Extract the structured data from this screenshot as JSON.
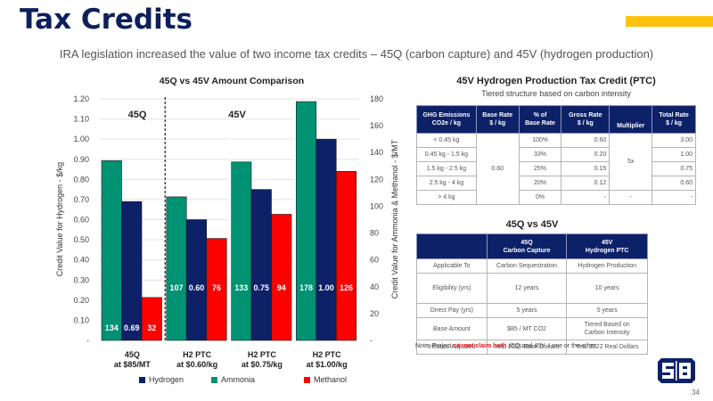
{
  "header": {
    "title": "Tax Credits",
    "subtitle": "IRA legislation increased the value of two income tax credits – 45Q (carbon capture) and 45V (hydrogen production)",
    "accent_color": "#ffc20e",
    "title_color": "#0d1f5c"
  },
  "chart_data": {
    "type": "bar",
    "title": "45Q vs 45V Amount Comparison",
    "categories": [
      "45Q\nat $85/MT",
      "H2 PTC\nat $0.60/kg",
      "H2 PTC\nat $0.75/kg",
      "H2 PTC\nat $1.00/kg"
    ],
    "category_lines": [
      [
        "45Q",
        "at $85/MT"
      ],
      [
        "H2 PTC",
        "at $0.60/kg"
      ],
      [
        "H2 PTC",
        "at $0.75/kg"
      ],
      [
        "H2 PTC",
        "at $1.00/kg"
      ]
    ],
    "series": [
      {
        "name": "Ammonia",
        "axis": "right",
        "color": "#009273",
        "values": [
          134,
          107,
          133,
          178
        ],
        "labels": [
          "134",
          "107",
          "133",
          "178"
        ]
      },
      {
        "name": "Hydrogen",
        "axis": "left",
        "color": "#0d2169",
        "values": [
          0.69,
          0.6,
          0.75,
          1.0
        ],
        "labels": [
          "0.69",
          "0.60",
          "0.75",
          "1.00"
        ]
      },
      {
        "name": "Methanol",
        "axis": "right",
        "color": "#ff0000",
        "values": [
          32,
          76,
          94,
          126
        ],
        "labels": [
          "32",
          "76",
          "94",
          "126"
        ]
      }
    ],
    "legend_order": [
      "Hydrogen",
      "Ammonia",
      "Methanol"
    ],
    "legend_position": "bottom",
    "ylabel": "Credit Value for Hydrogen - $/kg",
    "y2label": "Credit Value for Ammonia & Methanol - $/MT",
    "ylim": [
      0,
      1.2
    ],
    "y2lim": [
      0,
      180
    ],
    "yticks": [
      "-",
      "0.10",
      "0.20",
      "0.30",
      "0.40",
      "0.50",
      "0.60",
      "0.70",
      "0.80",
      "0.90",
      "1.00",
      "1.10",
      "1.20"
    ],
    "y2ticks": [
      "-",
      "20",
      "40",
      "60",
      "80",
      "100",
      "120",
      "140",
      "160",
      "180"
    ],
    "grid": true,
    "annotations": [
      "45Q",
      "45V"
    ],
    "divider": "dashed line between 45Q and 45V groups"
  },
  "ptc_table": {
    "title": "45V Hydrogen Production Tax Credit (PTC)",
    "subtitle": "Tiered structure based on carbon intensity",
    "headers": [
      [
        "GHG Emissions",
        "CO2e / kg"
      ],
      [
        "Base Rate",
        "$ / kg"
      ],
      [
        "% of",
        "Base Rate"
      ],
      [
        "Gross Rate",
        "$ / kg"
      ],
      [
        "",
        "Multiplier"
      ],
      [
        "Total Rate",
        "$ / kg"
      ]
    ],
    "base_rate": "0.60",
    "multiplier": "5x",
    "rows": [
      {
        "ghg": "< 0.45 kg",
        "pct": "100%",
        "gross": "0.60",
        "total": "3.00"
      },
      {
        "ghg": "0.45 kg - 1.5 kg",
        "pct": "33%",
        "gross": "0.20",
        "total": "1.00"
      },
      {
        "ghg": "1.5 kg - 2.5 kg",
        "pct": "25%",
        "gross": "0.15",
        "total": "0.75"
      },
      {
        "ghg": "2.5 kg - 4 kg",
        "pct": "20%",
        "gross": "0.12",
        "total": "0.60"
      },
      {
        "ghg": "> 4 kg",
        "pct": "0%",
        "gross": "-",
        "multiplier": "-",
        "total": "-"
      }
    ]
  },
  "compare_table": {
    "title": "45Q vs 45V",
    "headers": [
      "",
      [
        "45Q",
        "Carbon Capture"
      ],
      [
        "45V",
        "Hydrogen PTC"
      ]
    ],
    "rows": [
      {
        "label": "Applicable To",
        "q": "Carbon Sequestration",
        "v": "Hydrogen Production"
      },
      {
        "label": "Eligibility (yrs)",
        "q": "12 years",
        "v": "10 years"
      },
      {
        "label": "Direct Pay (yrs)",
        "q": "5 years",
        "v": "5 years"
      },
      {
        "label": "Base Amount",
        "q": "$85 / MT CO2",
        "v": "Tiered Based on\nCarbon Intensity"
      },
      {
        "label": "Inflation Adjusted",
        "q": "Yes, 2025 Base Dollars",
        "v": "Yes, 2022 Real Dollars"
      }
    ]
  },
  "note": {
    "prefix": "Note: Project ",
    "highlight": "cannot claim both",
    "suffix": " 45Q and 45V – one or the other"
  },
  "footer": {
    "logo": "S&B logo",
    "page_number": "34"
  }
}
